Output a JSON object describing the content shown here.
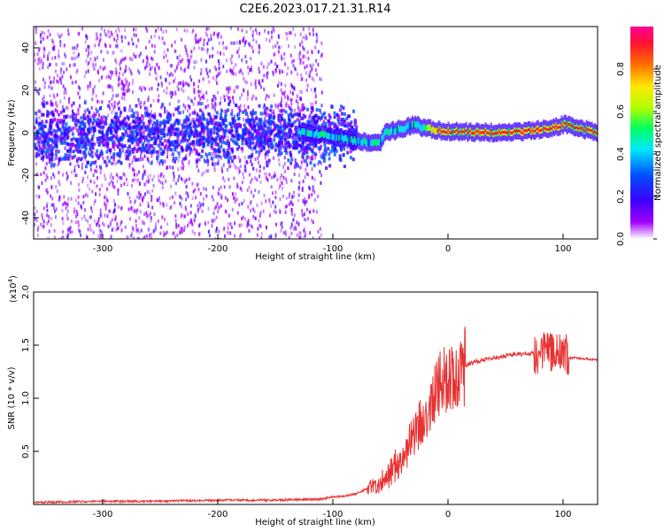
{
  "title": "C2E6.2023.017.21.31.R14",
  "chart_data": [
    {
      "type": "heatmap",
      "xlabel": "Height of straight line (km)",
      "ylabel": "Frequency (Hz)",
      "xlim": [
        -360,
        130
      ],
      "ylim": [
        -50,
        50
      ],
      "x_ticks": [
        -300,
        -200,
        -100,
        0,
        100
      ],
      "x_tick_labels": [
        "-300",
        "-200",
        "-100",
        "0",
        "100"
      ],
      "y_ticks": [
        -40,
        -20,
        0,
        20,
        40
      ],
      "y_tick_labels": [
        "-40",
        "-20",
        "0",
        "20",
        "40"
      ],
      "colorbar": {
        "label": "Normalized spectral amplitude",
        "range": [
          0,
          1
        ],
        "ticks": [
          0.0,
          0.2,
          0.4,
          0.6,
          0.8
        ],
        "tick_labels": [
          "0.0",
          "0.2",
          "0.4",
          "0.6",
          "0.8"
        ],
        "colors": [
          "#ffffff",
          "#a000ff",
          "#3c00ff",
          "#0050ff",
          "#00e6ff",
          "#00ff60",
          "#b4ff00",
          "#ffe600",
          "#ff7000",
          "#ff1430",
          "#ff0096"
        ]
      },
      "ridge": [
        {
          "x": -120,
          "y": 0
        },
        {
          "x": -100,
          "y": -2
        },
        {
          "x": -80,
          "y": -4
        },
        {
          "x": -60,
          "y": -5
        },
        {
          "x": -55,
          "y": 0
        },
        {
          "x": -40,
          "y": 2
        },
        {
          "x": -30,
          "y": 4
        },
        {
          "x": -20,
          "y": 2
        },
        {
          "x": 0,
          "y": 0.5
        },
        {
          "x": 50,
          "y": 0
        },
        {
          "x": 90,
          "y": 2
        },
        {
          "x": 100,
          "y": 4
        },
        {
          "x": 130,
          "y": 0
        }
      ]
    },
    {
      "type": "line",
      "xlabel": "Height of straight line (km)",
      "ylabel": "SNR (10 * v/v)",
      "y_multiplier": "(x10",
      "y_multiplier_exp": "4",
      "y_multiplier_close": ")",
      "xlim": [
        -360,
        130
      ],
      "ylim": [
        0,
        2.0
      ],
      "x_ticks": [
        -300,
        -200,
        -100,
        0,
        100
      ],
      "x_tick_labels": [
        "-300",
        "-200",
        "-100",
        "0",
        "100"
      ],
      "y_ticks": [
        0.5,
        1.0,
        1.5,
        2.0
      ],
      "y_tick_labels": [
        "0.5",
        "1.0",
        "1.5",
        "2.0"
      ],
      "color": "#e83232",
      "series": [
        {
          "x": [
            -360,
            -300,
            -250,
            -200,
            -150,
            -110,
            -100,
            -90,
            -80,
            -70,
            -60,
            -50,
            -40,
            -30,
            -20,
            -10,
            0,
            10,
            20,
            30,
            40,
            50,
            60,
            70,
            80,
            90,
            100,
            105,
            110,
            120,
            130
          ],
          "y": [
            0.02,
            0.03,
            0.03,
            0.04,
            0.04,
            0.05,
            0.07,
            0.08,
            0.1,
            0.15,
            0.2,
            0.3,
            0.45,
            0.65,
            0.85,
            1.1,
            1.2,
            1.28,
            1.33,
            1.36,
            1.38,
            1.4,
            1.42,
            1.42,
            1.43,
            1.44,
            1.44,
            1.38,
            1.38,
            1.37,
            1.36
          ]
        }
      ]
    }
  ]
}
